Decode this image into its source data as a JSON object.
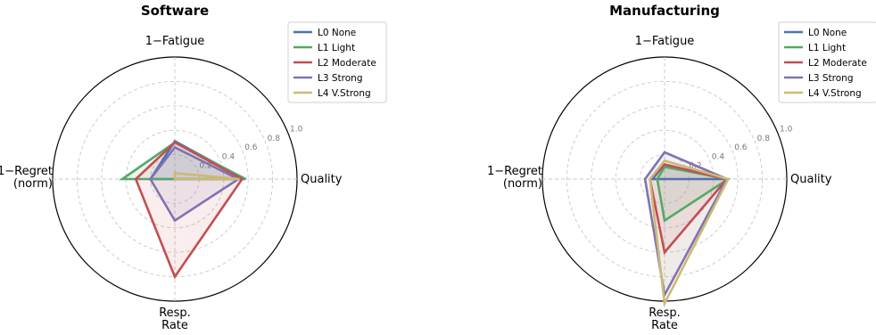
{
  "chart_data": [
    {
      "type": "radar",
      "title": "Software",
      "axes": [
        "Quality",
        "1−Fatigue",
        "1−Regret\n(norm)",
        "Resp.\nRate"
      ],
      "rlim": [
        0,
        1.0
      ],
      "rticks": [
        "0.2",
        "0.4",
        "0.6",
        "0.8",
        "1.0"
      ],
      "grid": true,
      "legend": "top-right",
      "series": [
        {
          "name": "L0 None",
          "color": "#4c72b0",
          "values": [
            0.57,
            0.31,
            0.2,
            0.0
          ]
        },
        {
          "name": "L1 Light",
          "color": "#55a868",
          "values": [
            0.58,
            0.3,
            0.43,
            0.0
          ]
        },
        {
          "name": "L2 Moderate",
          "color": "#c44e52",
          "values": [
            0.55,
            0.3,
            0.32,
            0.8
          ]
        },
        {
          "name": "L3 Strong",
          "color": "#8172b2",
          "values": [
            0.52,
            0.26,
            0.2,
            0.34
          ]
        },
        {
          "name": "L4 V.Strong",
          "color": "#ccb974",
          "values": [
            0.53,
            0.05,
            0.0,
            0.0
          ]
        }
      ]
    },
    {
      "type": "radar",
      "title": "Manufacturing",
      "axes": [
        "Quality",
        "1−Fatigue",
        "1−Regret\n(norm)",
        "Resp.\nRate"
      ],
      "rlim": [
        0,
        1.0
      ],
      "rticks": [
        "0.2",
        "0.4",
        "0.6",
        "0.8",
        "1.0"
      ],
      "grid": true,
      "legend": "top-right",
      "series": [
        {
          "name": "L0 None",
          "color": "#4c72b0",
          "values": [
            0.5,
            0.12,
            0.1,
            0.0
          ]
        },
        {
          "name": "L1 Light",
          "color": "#55a868",
          "values": [
            0.52,
            0.1,
            0.06,
            0.34
          ]
        },
        {
          "name": "L2 Moderate",
          "color": "#c44e52",
          "values": [
            0.51,
            0.12,
            0.12,
            0.6
          ]
        },
        {
          "name": "L3 Strong",
          "color": "#8172b2",
          "values": [
            0.51,
            0.22,
            0.16,
            0.95
          ]
        },
        {
          "name": "L4 V.Strong",
          "color": "#ccb974",
          "values": [
            0.52,
            0.15,
            0.12,
            1.02
          ]
        }
      ]
    }
  ]
}
